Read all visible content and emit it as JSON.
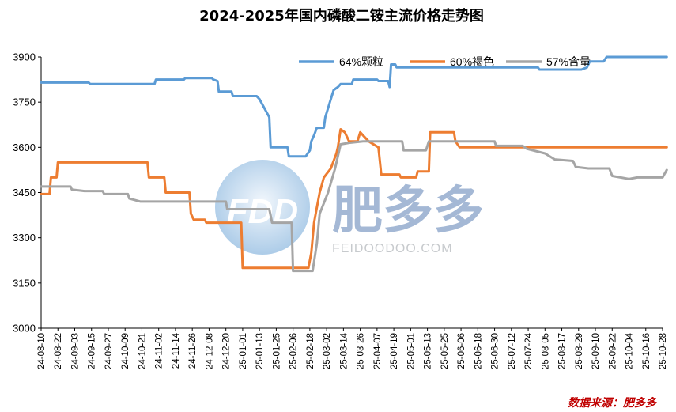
{
  "chart_data": {
    "type": "line",
    "title": "2024-2025年国内磷酸二铵主流价格走势图",
    "xlabel": "",
    "ylabel": "",
    "ylim": [
      3000,
      3900
    ],
    "yticks": [
      3000,
      3150,
      3300,
      3450,
      3600,
      3750,
      3900
    ],
    "grid": false,
    "legend": "top-right",
    "source": "数据来源：肥多多",
    "x_ticks": [
      "24-08-10",
      "24-08-22",
      "24-09-03",
      "24-09-15",
      "24-09-27",
      "24-10-09",
      "24-10-21",
      "24-11-02",
      "24-11-14",
      "24-11-26",
      "24-12-08",
      "24-12-20",
      "25-01-01",
      "25-01-13",
      "25-01-25",
      "25-02-06",
      "25-02-18",
      "25-03-02",
      "25-03-14",
      "25-03-26",
      "25-04-07",
      "25-04-19",
      "25-05-01",
      "25-05-13",
      "25-05-25",
      "25-06-06",
      "25-06-18",
      "25-06-30",
      "25-07-12",
      "25-07-24",
      "25-08-05",
      "25-08-17",
      "25-08-29",
      "25-09-10",
      "25-09-22",
      "25-10-04",
      "25-10-16",
      "25-10-28"
    ],
    "x_start": "24-08-10",
    "x_end": "25-10-28",
    "series": [
      {
        "name": "64%颗粒",
        "color": "#5b9bd5",
        "points": [
          [
            "24-08-10",
            3815
          ],
          [
            "24-09-13",
            3815
          ],
          [
            "24-09-14",
            3810
          ],
          [
            "24-10-30",
            3810
          ],
          [
            "24-10-31",
            3825
          ],
          [
            "24-11-20",
            3825
          ],
          [
            "24-11-21",
            3830
          ],
          [
            "24-12-10",
            3830
          ],
          [
            "24-12-11",
            3825
          ],
          [
            "24-12-14",
            3820
          ],
          [
            "24-12-15",
            3785
          ],
          [
            "24-12-24",
            3785
          ],
          [
            "24-12-25",
            3770
          ],
          [
            "25-01-11",
            3770
          ],
          [
            "25-01-13",
            3760
          ],
          [
            "25-01-20",
            3700
          ],
          [
            "25-01-21",
            3600
          ],
          [
            "25-02-02",
            3600
          ],
          [
            "25-02-03",
            3570
          ],
          [
            "25-02-15",
            3570
          ],
          [
            "25-02-18",
            3590
          ],
          [
            "25-02-19",
            3620
          ],
          [
            "25-02-21",
            3640
          ],
          [
            "25-02-23",
            3665
          ],
          [
            "25-02-28",
            3665
          ],
          [
            "25-03-01",
            3700
          ],
          [
            "25-03-03",
            3730
          ],
          [
            "25-03-05",
            3760
          ],
          [
            "25-03-07",
            3790
          ],
          [
            "25-03-10",
            3800
          ],
          [
            "25-03-12",
            3810
          ],
          [
            "25-03-20",
            3810
          ],
          [
            "25-03-21",
            3825
          ],
          [
            "25-04-07",
            3825
          ],
          [
            "25-04-08",
            3820
          ],
          [
            "25-04-15",
            3820
          ],
          [
            "25-04-16",
            3800
          ],
          [
            "25-04-17",
            3875
          ],
          [
            "25-04-20",
            3875
          ],
          [
            "25-04-21",
            3865
          ],
          [
            "25-07-31",
            3865
          ],
          [
            "25-08-01",
            3858
          ],
          [
            "25-08-31",
            3858
          ],
          [
            "25-09-04",
            3865
          ],
          [
            "25-09-06",
            3885
          ],
          [
            "25-09-16",
            3885
          ],
          [
            "25-09-18",
            3900
          ],
          [
            "25-10-31",
            3900
          ]
        ]
      },
      {
        "name": "60%褐色",
        "color": "#ed7d31",
        "points": [
          [
            "24-08-10",
            3445
          ],
          [
            "24-08-16",
            3445
          ],
          [
            "24-08-17",
            3500
          ],
          [
            "24-08-21",
            3500
          ],
          [
            "24-08-22",
            3550
          ],
          [
            "24-10-25",
            3550
          ],
          [
            "24-10-26",
            3500
          ],
          [
            "24-11-06",
            3500
          ],
          [
            "24-11-07",
            3450
          ],
          [
            "24-11-24",
            3450
          ],
          [
            "24-11-25",
            3380
          ],
          [
            "24-11-27",
            3360
          ],
          [
            "24-12-05",
            3360
          ],
          [
            "24-12-06",
            3350
          ],
          [
            "24-12-31",
            3350
          ],
          [
            "25-01-01",
            3200
          ],
          [
            "25-02-17",
            3200
          ],
          [
            "25-02-19",
            3250
          ],
          [
            "25-02-21",
            3350
          ],
          [
            "25-02-23",
            3400
          ],
          [
            "25-02-25",
            3450
          ],
          [
            "25-02-28",
            3500
          ],
          [
            "25-03-05",
            3530
          ],
          [
            "25-03-09",
            3580
          ],
          [
            "25-03-10",
            3600
          ],
          [
            "25-03-12",
            3660
          ],
          [
            "25-03-15",
            3650
          ],
          [
            "25-03-18",
            3620
          ],
          [
            "25-03-24",
            3620
          ],
          [
            "25-03-26",
            3650
          ],
          [
            "25-04-01",
            3620
          ],
          [
            "25-04-08",
            3600
          ],
          [
            "25-04-10",
            3510
          ],
          [
            "25-04-23",
            3510
          ],
          [
            "25-04-24",
            3500
          ],
          [
            "25-05-05",
            3500
          ],
          [
            "25-05-06",
            3520
          ],
          [
            "25-05-14",
            3520
          ],
          [
            "25-05-15",
            3650
          ],
          [
            "25-06-01",
            3650
          ],
          [
            "25-06-02",
            3620
          ],
          [
            "25-06-05",
            3600
          ],
          [
            "25-10-31",
            3600
          ]
        ]
      },
      {
        "name": "57%含量",
        "color": "#a5a5a5",
        "points": [
          [
            "24-08-10",
            3470
          ],
          [
            "24-08-31",
            3470
          ],
          [
            "24-09-01",
            3460
          ],
          [
            "24-09-10",
            3455
          ],
          [
            "24-09-23",
            3455
          ],
          [
            "24-09-24",
            3445
          ],
          [
            "24-10-11",
            3445
          ],
          [
            "24-10-12",
            3430
          ],
          [
            "24-10-20",
            3420
          ],
          [
            "24-12-20",
            3420
          ],
          [
            "24-12-21",
            3395
          ],
          [
            "25-01-20",
            3395
          ],
          [
            "25-01-22",
            3350
          ],
          [
            "25-02-05",
            3350
          ],
          [
            "25-02-06",
            3190
          ],
          [
            "25-02-20",
            3190
          ],
          [
            "25-02-23",
            3280
          ],
          [
            "25-02-25",
            3380
          ],
          [
            "25-03-03",
            3450
          ],
          [
            "25-03-08",
            3530
          ],
          [
            "25-03-12",
            3610
          ],
          [
            "25-03-18",
            3615
          ],
          [
            "25-03-28",
            3620
          ],
          [
            "25-04-25",
            3620
          ],
          [
            "25-04-26",
            3590
          ],
          [
            "25-05-12",
            3590
          ],
          [
            "25-05-14",
            3620
          ],
          [
            "25-06-30",
            3620
          ],
          [
            "25-07-01",
            3605
          ],
          [
            "25-07-20",
            3605
          ],
          [
            "25-07-23",
            3595
          ],
          [
            "25-08-05",
            3580
          ],
          [
            "25-08-12",
            3560
          ],
          [
            "25-08-25",
            3555
          ],
          [
            "25-08-27",
            3535
          ],
          [
            "25-09-05",
            3530
          ],
          [
            "25-09-20",
            3530
          ],
          [
            "25-09-22",
            3505
          ],
          [
            "25-10-04",
            3495
          ],
          [
            "25-10-10",
            3500
          ],
          [
            "25-10-28",
            3500
          ],
          [
            "25-10-31",
            3525
          ]
        ]
      }
    ]
  },
  "watermark": {
    "logo_text": "FDD",
    "brand_cn": "肥多多",
    "brand_en": "FEIDOODOO.COM"
  }
}
